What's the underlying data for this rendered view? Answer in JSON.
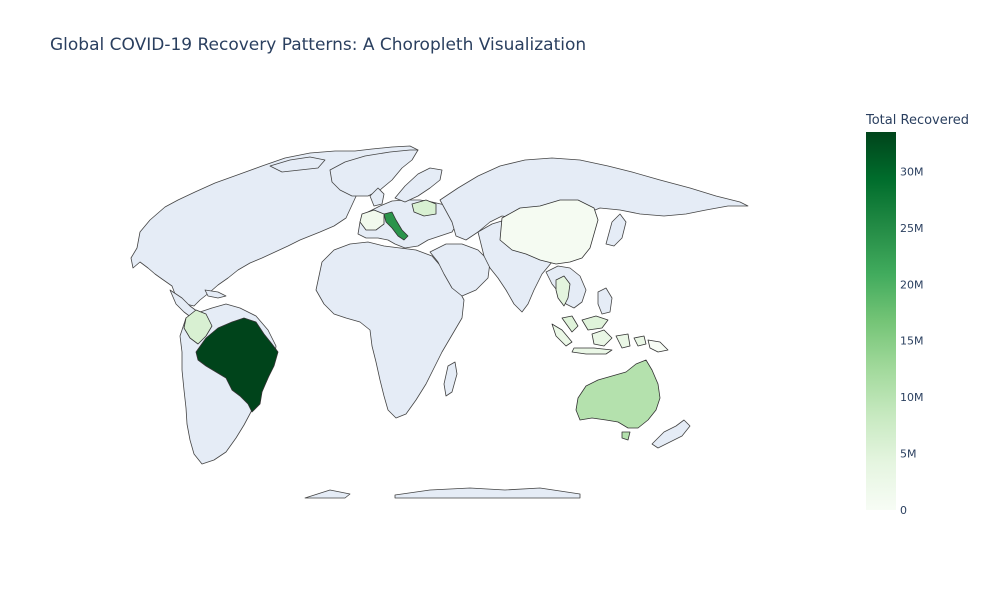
{
  "title": "Global COVID-19 Recovery Patterns: A Choropleth Visualization",
  "colorbar": {
    "title": "Total Recovered",
    "ticks": [
      {
        "label": "0",
        "value": 0
      },
      {
        "label": "5M",
        "value": 5000000
      },
      {
        "label": "10M",
        "value": 10000000
      },
      {
        "label": "15M",
        "value": 15000000
      },
      {
        "label": "20M",
        "value": 20000000
      },
      {
        "label": "25M",
        "value": 25000000
      },
      {
        "label": "30M",
        "value": 30000000
      }
    ],
    "range": [
      0,
      33500000
    ],
    "colorscale": [
      "#f7fcf5",
      "#e5f5e0",
      "#c7e9c0",
      "#a1d99b",
      "#74c476",
      "#41ab5d",
      "#238b45",
      "#006d2c",
      "#00441b"
    ]
  },
  "chart_data": {
    "type": "choropleth",
    "projection": "natural earth",
    "land_color": "#e5ecf6",
    "colorbar_title": "Total Recovered",
    "countries": [
      {
        "id": "brazil",
        "value": 33500000
      },
      {
        "id": "italy",
        "value": 24000000
      },
      {
        "id": "australia",
        "value": 10500000
      },
      {
        "id": "colombia",
        "value": 6000000
      },
      {
        "id": "poland",
        "value": 6000000
      },
      {
        "id": "malaysia",
        "value": 5000000
      },
      {
        "id": "thailand",
        "value": 4500000
      },
      {
        "id": "indonesia",
        "value": 3000000
      },
      {
        "id": "france",
        "value": 1500000
      },
      {
        "id": "china",
        "value": 500000
      },
      {
        "id": "papua-new-guinea",
        "value": 50000
      }
    ]
  }
}
